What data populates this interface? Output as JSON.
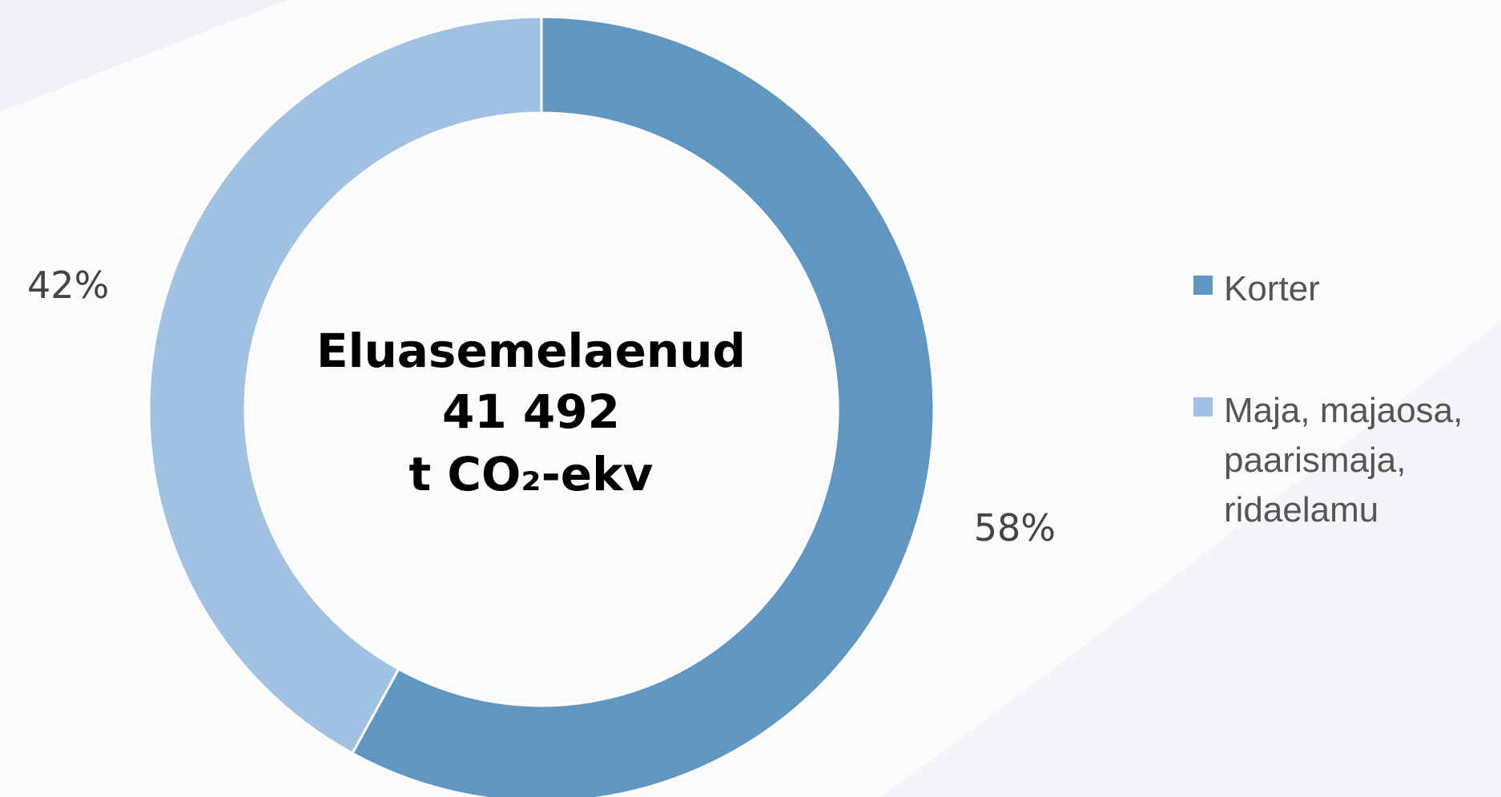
{
  "chart_data": {
    "type": "donut",
    "center_text": [
      "Eluasemelaenud",
      "41 492",
      "t CO₂-ekv"
    ],
    "categories": [
      "Korter",
      "Maja, majaosa, paarismaja, ridaelamu"
    ],
    "values": [
      58,
      42
    ],
    "value_labels": [
      "58%",
      "42%"
    ],
    "colors": [
      "#5f96c2",
      "#a0c1e2"
    ],
    "legend": "right"
  }
}
